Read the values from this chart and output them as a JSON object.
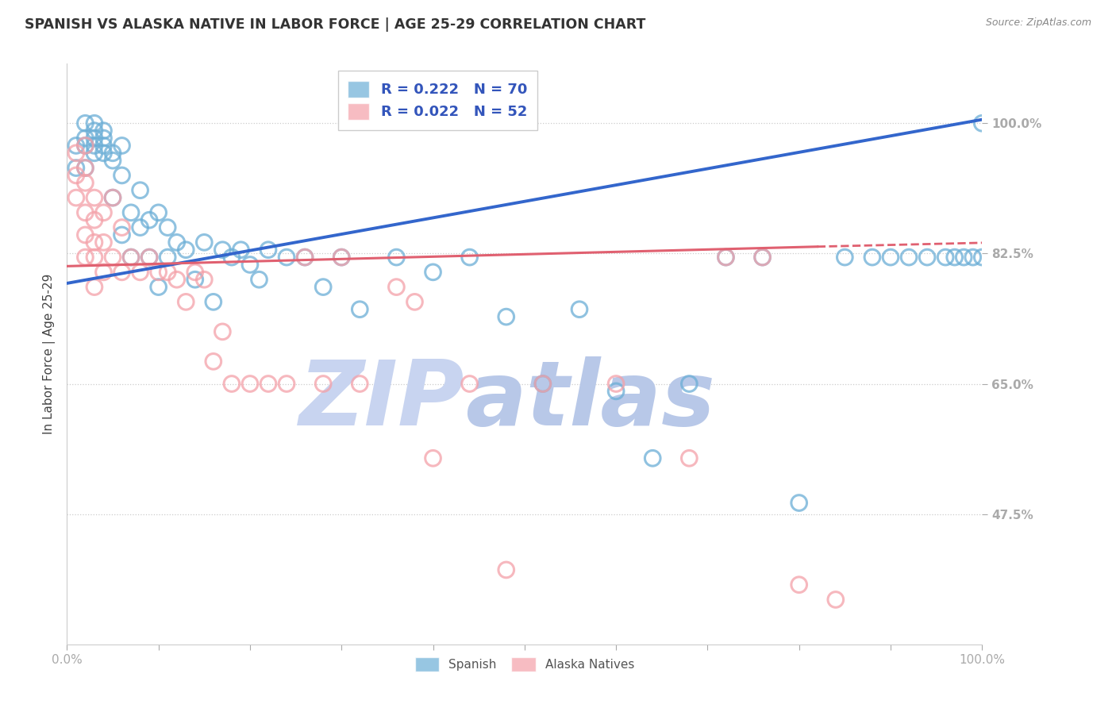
{
  "title": "SPANISH VS ALASKA NATIVE IN LABOR FORCE | AGE 25-29 CORRELATION CHART",
  "source": "Source: ZipAtlas.com",
  "ylabel": "In Labor Force | Age 25-29",
  "ytick_labels": [
    "47.5%",
    "65.0%",
    "82.5%",
    "100.0%"
  ],
  "ytick_values": [
    0.475,
    0.65,
    0.825,
    1.0
  ],
  "xlim": [
    0.0,
    1.0
  ],
  "ylim": [
    0.3,
    1.08
  ],
  "legend_blue_r": "R = 0.222",
  "legend_blue_n": "N = 70",
  "legend_pink_r": "R = 0.022",
  "legend_pink_n": "N = 52",
  "blue_color": "#6baed6",
  "pink_color": "#f4a0a8",
  "trend_blue_color": "#3366cc",
  "trend_pink_color": "#e06070",
  "title_color": "#333333",
  "yaxis_label_color": "#3355bb",
  "watermark_zip_color": "#c8d4f0",
  "watermark_atlas_color": "#b8c8e8",
  "trend_blue_x0": 0.0,
  "trend_blue_y0": 0.785,
  "trend_blue_x1": 1.0,
  "trend_blue_y1": 1.005,
  "trend_pink_x0": 0.0,
  "trend_pink_y0": 0.808,
  "trend_pink_x1": 1.0,
  "trend_pink_y1": 0.84,
  "spanish_x": [
    0.01,
    0.01,
    0.02,
    0.02,
    0.02,
    0.02,
    0.03,
    0.03,
    0.03,
    0.03,
    0.03,
    0.04,
    0.04,
    0.04,
    0.04,
    0.05,
    0.05,
    0.05,
    0.06,
    0.06,
    0.06,
    0.07,
    0.07,
    0.08,
    0.08,
    0.09,
    0.09,
    0.1,
    0.1,
    0.11,
    0.11,
    0.12,
    0.13,
    0.14,
    0.15,
    0.16,
    0.17,
    0.18,
    0.19,
    0.2,
    0.21,
    0.22,
    0.24,
    0.26,
    0.28,
    0.3,
    0.32,
    0.36,
    0.4,
    0.44,
    0.48,
    0.52,
    0.56,
    0.6,
    0.64,
    0.68,
    0.72,
    0.76,
    0.8,
    0.85,
    0.88,
    0.9,
    0.92,
    0.94,
    0.96,
    0.97,
    0.98,
    0.99,
    1.0,
    1.0
  ],
  "spanish_y": [
    0.97,
    0.94,
    0.97,
    0.94,
    0.98,
    1.0,
    0.97,
    0.96,
    0.98,
    0.99,
    1.0,
    0.97,
    0.99,
    0.96,
    0.98,
    0.95,
    0.9,
    0.96,
    0.97,
    0.93,
    0.85,
    0.88,
    0.82,
    0.91,
    0.86,
    0.87,
    0.82,
    0.88,
    0.78,
    0.86,
    0.82,
    0.84,
    0.83,
    0.79,
    0.84,
    0.76,
    0.83,
    0.82,
    0.83,
    0.81,
    0.79,
    0.83,
    0.82,
    0.82,
    0.78,
    0.82,
    0.75,
    0.82,
    0.8,
    0.82,
    0.74,
    0.65,
    0.75,
    0.64,
    0.55,
    0.65,
    0.82,
    0.82,
    0.49,
    0.82,
    0.82,
    0.82,
    0.82,
    0.82,
    0.82,
    0.82,
    0.82,
    0.82,
    0.82,
    1.0
  ],
  "alaska_x": [
    0.01,
    0.01,
    0.01,
    0.02,
    0.02,
    0.02,
    0.02,
    0.02,
    0.02,
    0.03,
    0.03,
    0.03,
    0.03,
    0.03,
    0.04,
    0.04,
    0.04,
    0.05,
    0.05,
    0.06,
    0.06,
    0.07,
    0.08,
    0.09,
    0.1,
    0.11,
    0.12,
    0.13,
    0.14,
    0.15,
    0.16,
    0.17,
    0.18,
    0.2,
    0.22,
    0.24,
    0.26,
    0.28,
    0.3,
    0.32,
    0.36,
    0.38,
    0.4,
    0.44,
    0.48,
    0.52,
    0.6,
    0.68,
    0.72,
    0.76,
    0.8,
    0.84
  ],
  "alaska_y": [
    0.96,
    0.93,
    0.9,
    0.94,
    0.92,
    0.97,
    0.88,
    0.85,
    0.82,
    0.9,
    0.87,
    0.84,
    0.82,
    0.78,
    0.88,
    0.84,
    0.8,
    0.9,
    0.82,
    0.86,
    0.8,
    0.82,
    0.8,
    0.82,
    0.8,
    0.8,
    0.79,
    0.76,
    0.8,
    0.79,
    0.68,
    0.72,
    0.65,
    0.65,
    0.65,
    0.65,
    0.82,
    0.65,
    0.82,
    0.65,
    0.78,
    0.76,
    0.55,
    0.65,
    0.4,
    0.65,
    0.65,
    0.55,
    0.82,
    0.82,
    0.38,
    0.36
  ]
}
